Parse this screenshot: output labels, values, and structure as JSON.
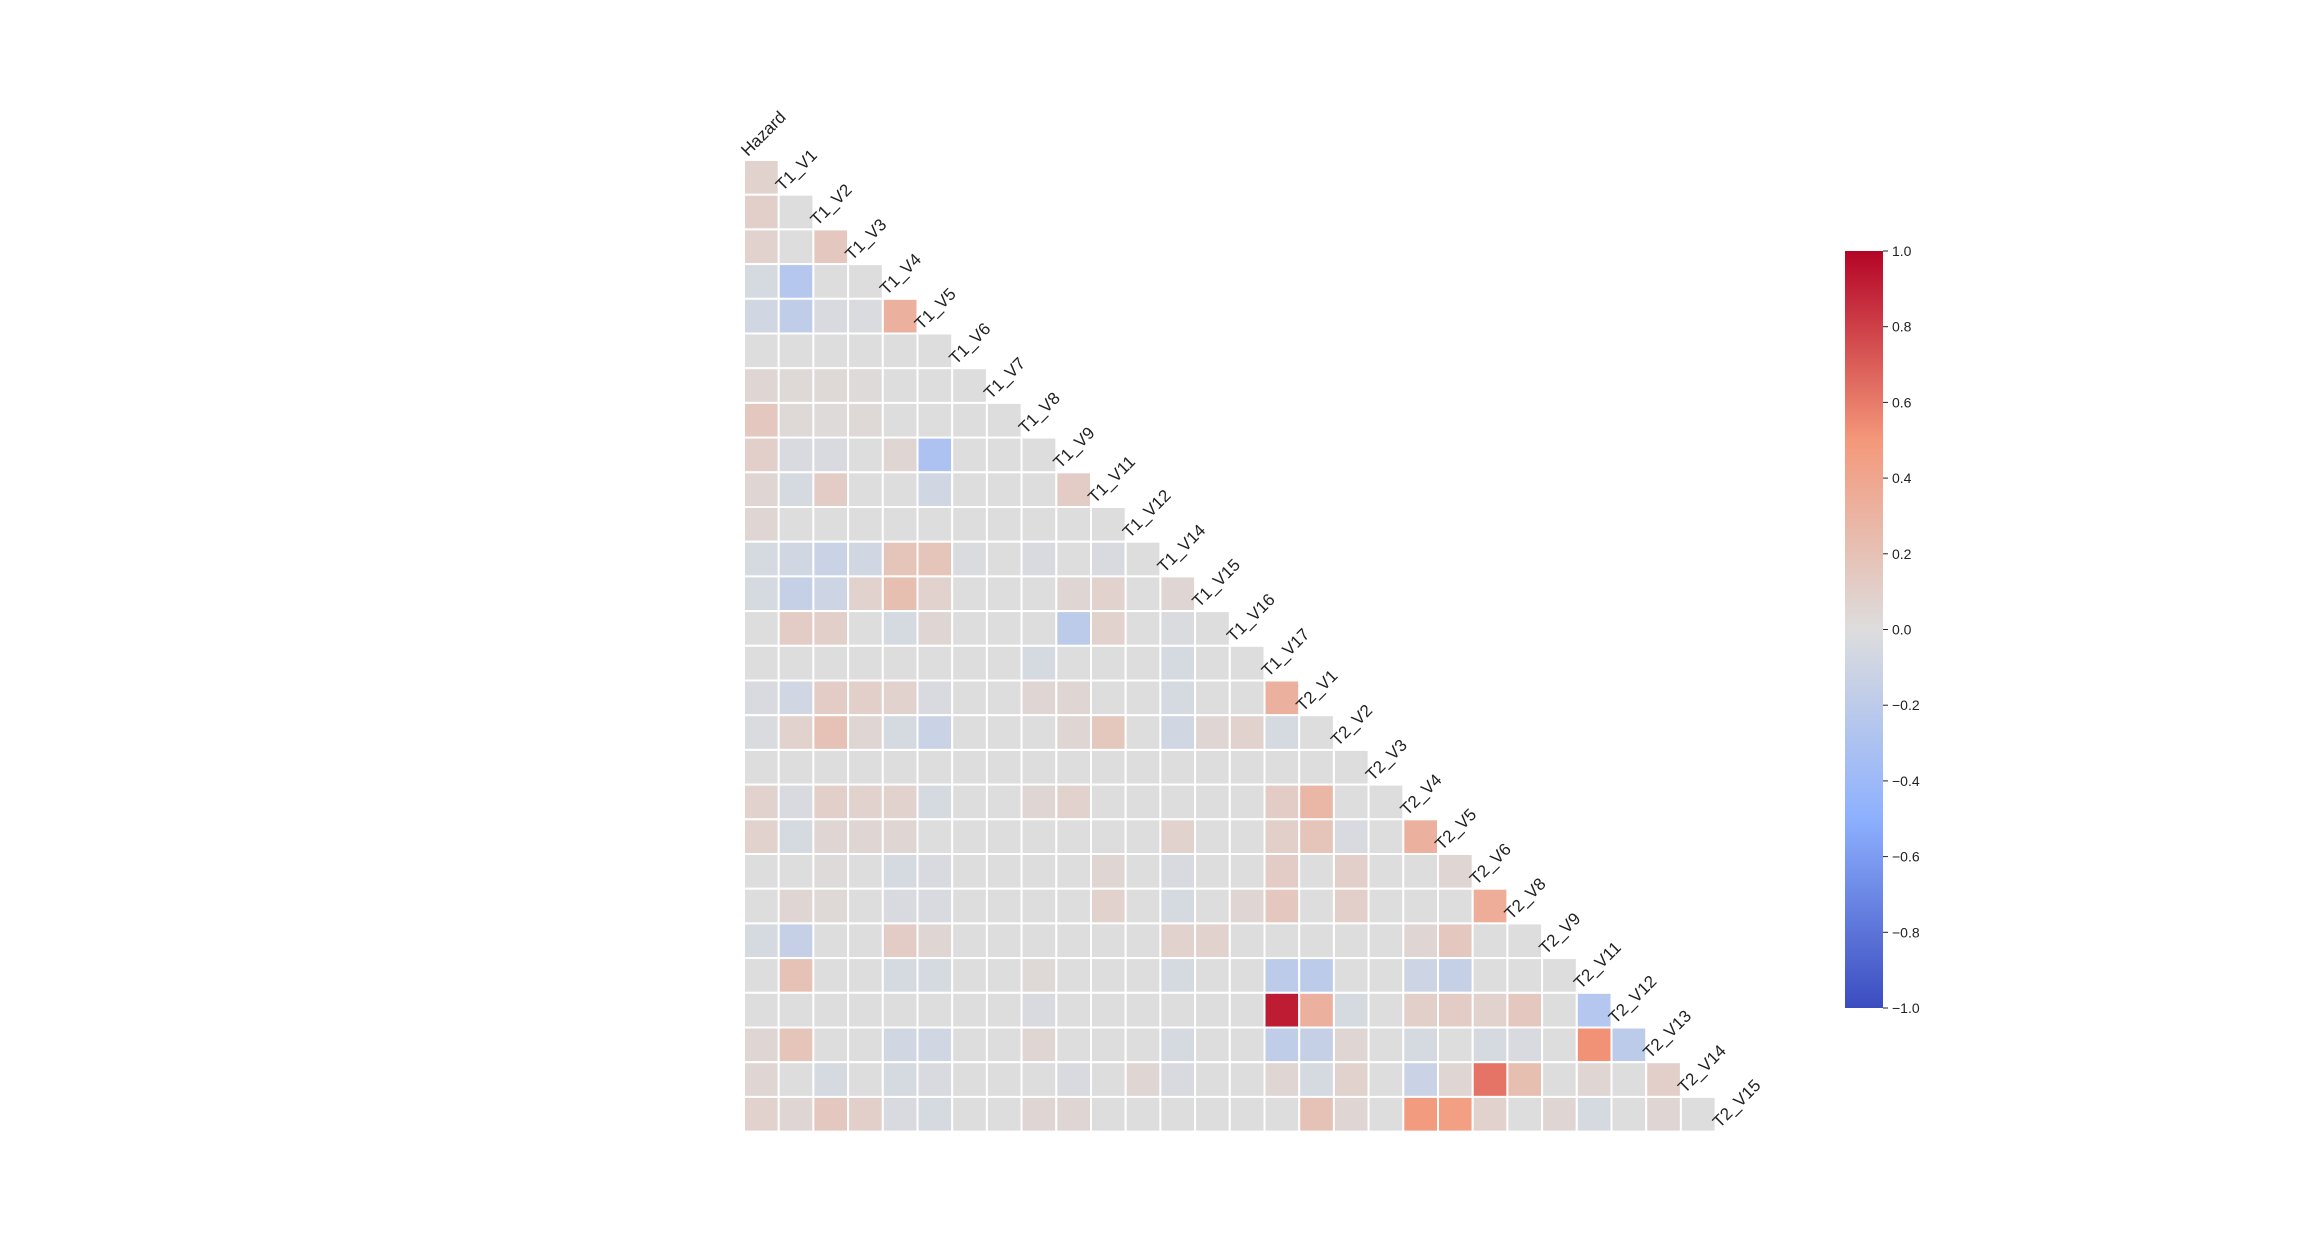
{
  "chart_data": {
    "type": "heatmap",
    "title": "",
    "xlabel": "",
    "ylabel": "",
    "layout": "lower-triangle",
    "colormap": "coolwarm",
    "vmin": -1.0,
    "vmax": 1.0,
    "colorbar_ticks": [
      "1.0",
      "0.8",
      "0.6",
      "0.4",
      "0.2",
      "0.0",
      "−0.2",
      "−0.4",
      "−0.6",
      "−0.8",
      "−1.0"
    ],
    "colorbar_tick_values": [
      1.0,
      0.8,
      0.6,
      0.4,
      0.2,
      0.0,
      -0.2,
      -0.4,
      -0.6,
      -0.8,
      -1.0
    ],
    "variables": [
      "Hazard",
      "T1_V1",
      "T1_V2",
      "T1_V3",
      "T1_V4",
      "T1_V5",
      "T1_V6",
      "T1_V7",
      "T1_V8",
      "T1_V9",
      "T1_V11",
      "T1_V12",
      "T1_V14",
      "T1_V15",
      "T1_V16",
      "T1_V17",
      "T2_V1",
      "T2_V2",
      "T2_V3",
      "T2_V4",
      "T2_V5",
      "T2_V6",
      "T2_V8",
      "T2_V9",
      "T2_V11",
      "T2_V12",
      "T2_V13",
      "T2_V14",
      "T2_V15"
    ],
    "matrix": [
      [
        0.08
      ],
      [
        0.1,
        0.0
      ],
      [
        0.08,
        0.0,
        0.15
      ],
      [
        -0.05,
        -0.25,
        0.0,
        0.0
      ],
      [
        -0.08,
        -0.18,
        -0.03,
        -0.02,
        0.32
      ],
      [
        0.0,
        0.0,
        0.0,
        0.0,
        0.0,
        0.0
      ],
      [
        0.05,
        0.03,
        0.03,
        0.02,
        0.0,
        0.0,
        0.0
      ],
      [
        0.15,
        0.03,
        0.02,
        0.03,
        0.0,
        0.0,
        0.0,
        0.0
      ],
      [
        0.1,
        -0.03,
        -0.03,
        0.0,
        0.05,
        -0.3,
        0.0,
        0.0,
        0.0
      ],
      [
        0.05,
        -0.05,
        0.12,
        0.0,
        0.0,
        -0.08,
        0.0,
        0.0,
        0.0,
        0.12
      ],
      [
        0.05,
        0.0,
        0.0,
        0.0,
        0.0,
        0.0,
        0.0,
        0.0,
        0.0,
        0.0,
        0.0
      ],
      [
        -0.05,
        -0.08,
        -0.12,
        -0.08,
        0.18,
        0.18,
        -0.02,
        0.0,
        -0.03,
        0.0,
        -0.03,
        0.0
      ],
      [
        -0.05,
        -0.15,
        -0.1,
        0.08,
        0.22,
        0.08,
        0.0,
        0.0,
        0.0,
        0.05,
        0.08,
        0.0,
        0.05
      ],
      [
        0.0,
        0.12,
        0.1,
        0.0,
        -0.05,
        0.05,
        0.0,
        0.0,
        0.0,
        -0.2,
        0.08,
        0.0,
        -0.02,
        0.0
      ],
      [
        0.0,
        0.0,
        0.0,
        0.0,
        0.0,
        0.0,
        0.0,
        0.0,
        -0.05,
        0.0,
        0.0,
        0.0,
        -0.05,
        0.0,
        0.0
      ],
      [
        -0.03,
        -0.08,
        0.12,
        0.1,
        0.08,
        -0.03,
        0.0,
        0.0,
        0.05,
        0.05,
        0.0,
        0.0,
        -0.05,
        0.0,
        0.0,
        0.32
      ],
      [
        -0.02,
        0.08,
        0.2,
        0.05,
        -0.05,
        -0.12,
        0.0,
        0.0,
        0.0,
        0.05,
        0.16,
        0.0,
        -0.08,
        0.05,
        0.08,
        -0.05,
        0.0
      ],
      [
        0.0,
        0.0,
        0.0,
        0.0,
        0.0,
        0.0,
        0.0,
        0.0,
        0.0,
        0.0,
        0.0,
        0.0,
        0.0,
        0.0,
        0.0,
        0.0,
        0.0,
        0.0
      ],
      [
        0.08,
        -0.03,
        0.1,
        0.08,
        0.08,
        -0.05,
        0.0,
        0.0,
        0.05,
        0.08,
        0.0,
        0.0,
        0.0,
        0.0,
        0.0,
        0.12,
        0.28,
        0.0,
        0.0
      ],
      [
        0.08,
        -0.05,
        0.05,
        0.05,
        0.05,
        0.0,
        0.0,
        0.0,
        0.0,
        0.0,
        0.0,
        0.0,
        0.08,
        0.0,
        0.0,
        0.1,
        0.18,
        -0.03,
        0.0,
        0.32
      ],
      [
        0.0,
        0.0,
        0.02,
        0.0,
        -0.05,
        -0.03,
        0.0,
        0.0,
        0.0,
        0.0,
        0.05,
        0.0,
        -0.03,
        0.0,
        0.0,
        0.12,
        0.0,
        0.1,
        0.0,
        0.0,
        0.05
      ],
      [
        0.0,
        0.05,
        0.03,
        0.0,
        -0.03,
        -0.03,
        0.0,
        0.0,
        0.0,
        0.0,
        0.08,
        0.0,
        -0.05,
        0.0,
        0.05,
        0.15,
        0.0,
        0.1,
        0.0,
        0.0,
        0.0,
        0.35
      ],
      [
        -0.05,
        -0.15,
        0.0,
        0.0,
        0.12,
        0.05,
        0.0,
        0.0,
        0.0,
        0.0,
        0.0,
        0.0,
        0.08,
        0.08,
        0.0,
        0.0,
        0.0,
        0.0,
        0.0,
        0.05,
        0.15,
        0.0,
        0.0
      ],
      [
        0.0,
        0.2,
        0.0,
        0.0,
        -0.05,
        -0.05,
        0.0,
        0.0,
        0.03,
        0.0,
        0.0,
        0.0,
        -0.05,
        0.0,
        0.0,
        -0.2,
        -0.2,
        0.0,
        0.0,
        -0.1,
        -0.15,
        0.0,
        0.0,
        0.0
      ],
      [
        0.0,
        0.0,
        0.0,
        0.0,
        0.0,
        0.0,
        0.0,
        0.0,
        -0.03,
        0.0,
        0.0,
        0.0,
        0.0,
        0.0,
        0.0,
        0.92,
        0.32,
        -0.05,
        0.0,
        0.1,
        0.12,
        0.08,
        0.15,
        0.0,
        -0.25
      ],
      [
        0.05,
        0.18,
        0.0,
        0.0,
        -0.08,
        -0.08,
        0.0,
        0.0,
        0.05,
        0.0,
        0.0,
        0.0,
        -0.05,
        0.0,
        0.0,
        -0.18,
        -0.15,
        0.05,
        0.0,
        -0.05,
        0.0,
        -0.05,
        -0.03,
        0.0,
        0.52,
        -0.2
      ],
      [
        0.05,
        0.0,
        -0.05,
        0.0,
        -0.05,
        -0.03,
        0.0,
        0.0,
        0.0,
        -0.03,
        0.0,
        0.05,
        -0.03,
        0.0,
        0.0,
        0.05,
        -0.05,
        0.08,
        0.0,
        -0.12,
        0.05,
        0.62,
        0.22,
        0.0,
        0.05,
        0.0,
        0.1
      ],
      [
        0.08,
        0.05,
        0.15,
        0.1,
        -0.03,
        -0.05,
        0.0,
        0.0,
        0.05,
        0.05,
        0.0,
        0.0,
        0.0,
        0.0,
        0.0,
        0.0,
        0.2,
        0.05,
        0.0,
        0.48,
        0.45,
        0.08,
        0.0,
        0.05,
        -0.05,
        0.0,
        0.05,
        0.0
      ]
    ]
  },
  "colors": {
    "cell_border": "#ffffff",
    "text": "#222222"
  }
}
